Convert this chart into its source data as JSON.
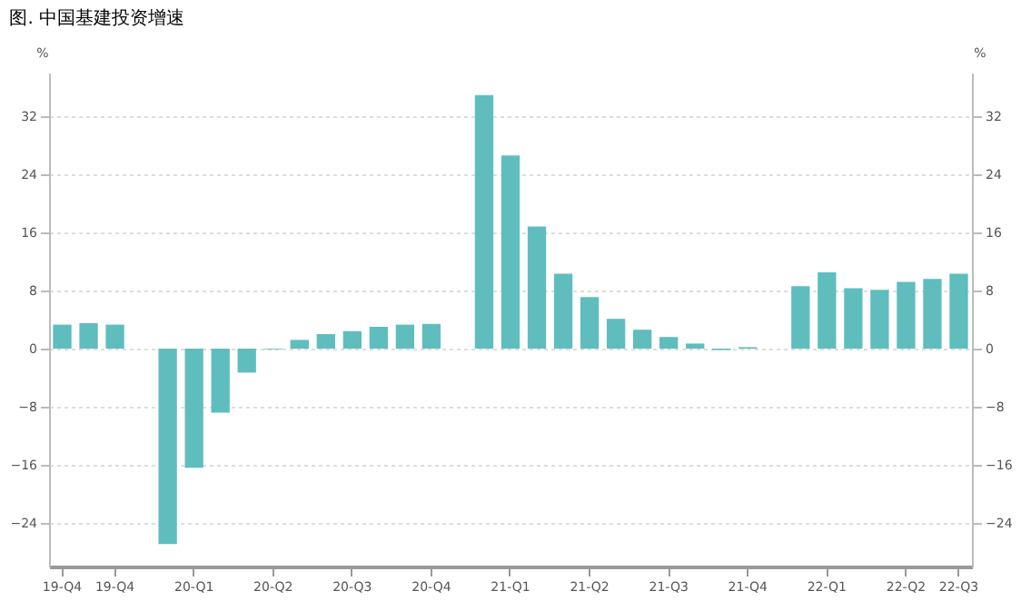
{
  "chart_data": {
    "type": "bar",
    "title": "图. 中国基建投资增速",
    "ylabel": "%",
    "y2label": "%",
    "categories": [
      "19-Q4",
      null,
      "19-Q4",
      null,
      null,
      "20-Q1",
      null,
      null,
      "20-Q2",
      null,
      null,
      "20-Q3",
      null,
      null,
      "20-Q4",
      null,
      null,
      "21-Q1",
      null,
      null,
      "21-Q2",
      null,
      null,
      "21-Q3",
      null,
      null,
      "21-Q4",
      null,
      null,
      "22-Q1",
      null,
      null,
      "22-Q2",
      null,
      "22-Q3"
    ],
    "series": [
      {
        "color": "#5fbdbd",
        "values": [
          3.3,
          3.5,
          3.3,
          null,
          -26.9,
          -16.4,
          -8.8,
          -3.3,
          -0.1,
          1.2,
          2.0,
          2.4,
          3.0,
          3.3,
          3.4,
          null,
          34.9,
          26.6,
          16.8,
          10.3,
          7.1,
          4.1,
          2.6,
          1.6,
          0.7,
          -0.2,
          0.2,
          null,
          8.6,
          10.5,
          8.3,
          8.1,
          9.2,
          9.6,
          10.3
        ]
      }
    ],
    "ylim": [
      -30,
      38
    ],
    "yticks": [
      -24,
      -16,
      -8,
      0,
      8,
      16,
      24,
      32
    ],
    "y2lim": [
      -30,
      38
    ],
    "y2ticks": [
      -24,
      -16,
      -8,
      0,
      8,
      16,
      24,
      32
    ],
    "grid": "y",
    "legend": false
  }
}
